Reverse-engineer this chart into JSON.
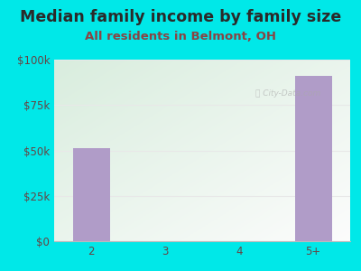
{
  "title": "Median family income by family size",
  "subtitle": "All residents in Belmont, OH",
  "categories": [
    "2",
    "3",
    "4",
    "5+"
  ],
  "values": [
    51000,
    0,
    0,
    91000
  ],
  "bar_color": "#b09cc8",
  "outer_bg": "#00e8e8",
  "plot_bg_topleft": "#d8eedd",
  "plot_bg_white": "#f8fff8",
  "title_color": "#2a2a2a",
  "subtitle_color": "#884444",
  "tick_color": "#664444",
  "grid_color": "#e8e8e8",
  "ylim": [
    0,
    100000
  ],
  "yticks": [
    0,
    25000,
    50000,
    75000,
    100000
  ],
  "ytick_labels": [
    "$0",
    "$25k",
    "$50k",
    "$75k",
    "$100k"
  ],
  "title_fontsize": 12.5,
  "subtitle_fontsize": 9.5,
  "tick_fontsize": 8.5
}
